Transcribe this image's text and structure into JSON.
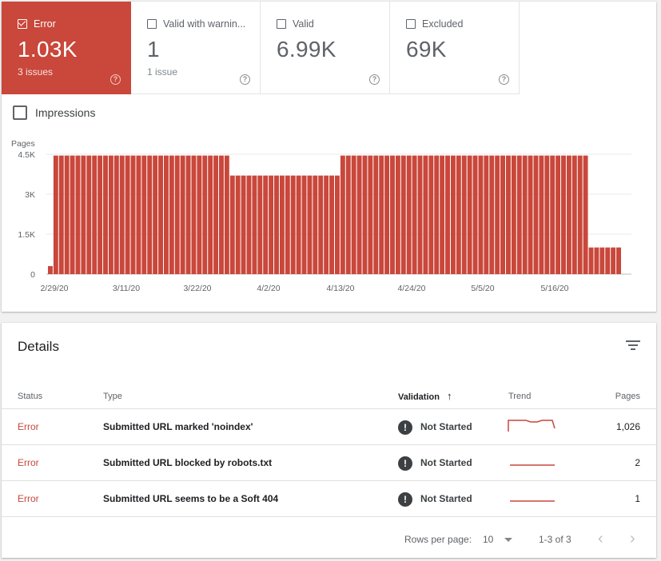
{
  "tiles": [
    {
      "label": "Error",
      "value": "1.03K",
      "sub": "3 issues",
      "active": true
    },
    {
      "label": "Valid with warnin...",
      "value": "1",
      "sub": "1 issue",
      "active": false
    },
    {
      "label": "Valid",
      "value": "6.99K",
      "sub": "",
      "active": false
    },
    {
      "label": "Excluded",
      "value": "69K",
      "sub": "",
      "active": false
    }
  ],
  "help_glyph": "?",
  "impressions_label": "Impressions",
  "chart_data": {
    "type": "bar",
    "ylabel": "Pages",
    "yticks": [
      "0",
      "1.5K",
      "3K",
      "4.5K"
    ],
    "ylim": [
      0,
      4500
    ],
    "xtick_labels": [
      "2/29/20",
      "3/11/20",
      "3/22/20",
      "4/2/20",
      "4/13/20",
      "4/24/20",
      "5/5/20",
      "5/16/20"
    ],
    "bar_color": "#c9473b",
    "grid": true,
    "values": [
      300,
      4450,
      4450,
      4450,
      4450,
      4450,
      4450,
      4450,
      4450,
      4450,
      4450,
      4450,
      4450,
      4450,
      4450,
      4450,
      4450,
      4450,
      4450,
      4450,
      4450,
      4450,
      4450,
      4450,
      4450,
      4450,
      4450,
      4450,
      4450,
      4450,
      4450,
      4450,
      4450,
      3700,
      3700,
      3700,
      3700,
      3700,
      3700,
      3700,
      3700,
      3700,
      3700,
      3700,
      3700,
      3700,
      3700,
      3700,
      3700,
      3700,
      3700,
      3700,
      3700,
      4450,
      4450,
      4450,
      4450,
      4450,
      4450,
      4450,
      4450,
      4450,
      4450,
      4450,
      4450,
      4450,
      4450,
      4450,
      4450,
      4450,
      4450,
      4450,
      4450,
      4450,
      4450,
      4450,
      4450,
      4450,
      4450,
      4450,
      4450,
      4450,
      4450,
      4450,
      4450,
      4450,
      4450,
      4450,
      4450,
      4450,
      4450,
      4450,
      4450,
      4450,
      4450,
      4450,
      4450,
      4450,
      1000,
      1000,
      1000,
      1000,
      1000,
      1000
    ]
  },
  "details": {
    "title": "Details",
    "columns": {
      "status": "Status",
      "type": "Type",
      "validation": "Validation",
      "sort_icon": "↑",
      "trend": "Trend",
      "pages": "Pages"
    },
    "rows": [
      {
        "status": "Error",
        "type": "Submitted URL marked 'noindex'",
        "validation": "Not Started",
        "pages": "1,026",
        "trend": "bumpy"
      },
      {
        "status": "Error",
        "type": "Submitted URL blocked by robots.txt",
        "validation": "Not Started",
        "pages": "2",
        "trend": "flat"
      },
      {
        "status": "Error",
        "type": "Submitted URL seems to be a Soft 404",
        "validation": "Not Started",
        "pages": "1",
        "trend": "flat"
      }
    ],
    "validation_icon": "!",
    "footer": {
      "rows_label": "Rows per page:",
      "rows_value": "10",
      "range": "1-3 of 3",
      "prev": "‹",
      "next": "›"
    }
  },
  "colors": {
    "error": "#c9473b"
  }
}
